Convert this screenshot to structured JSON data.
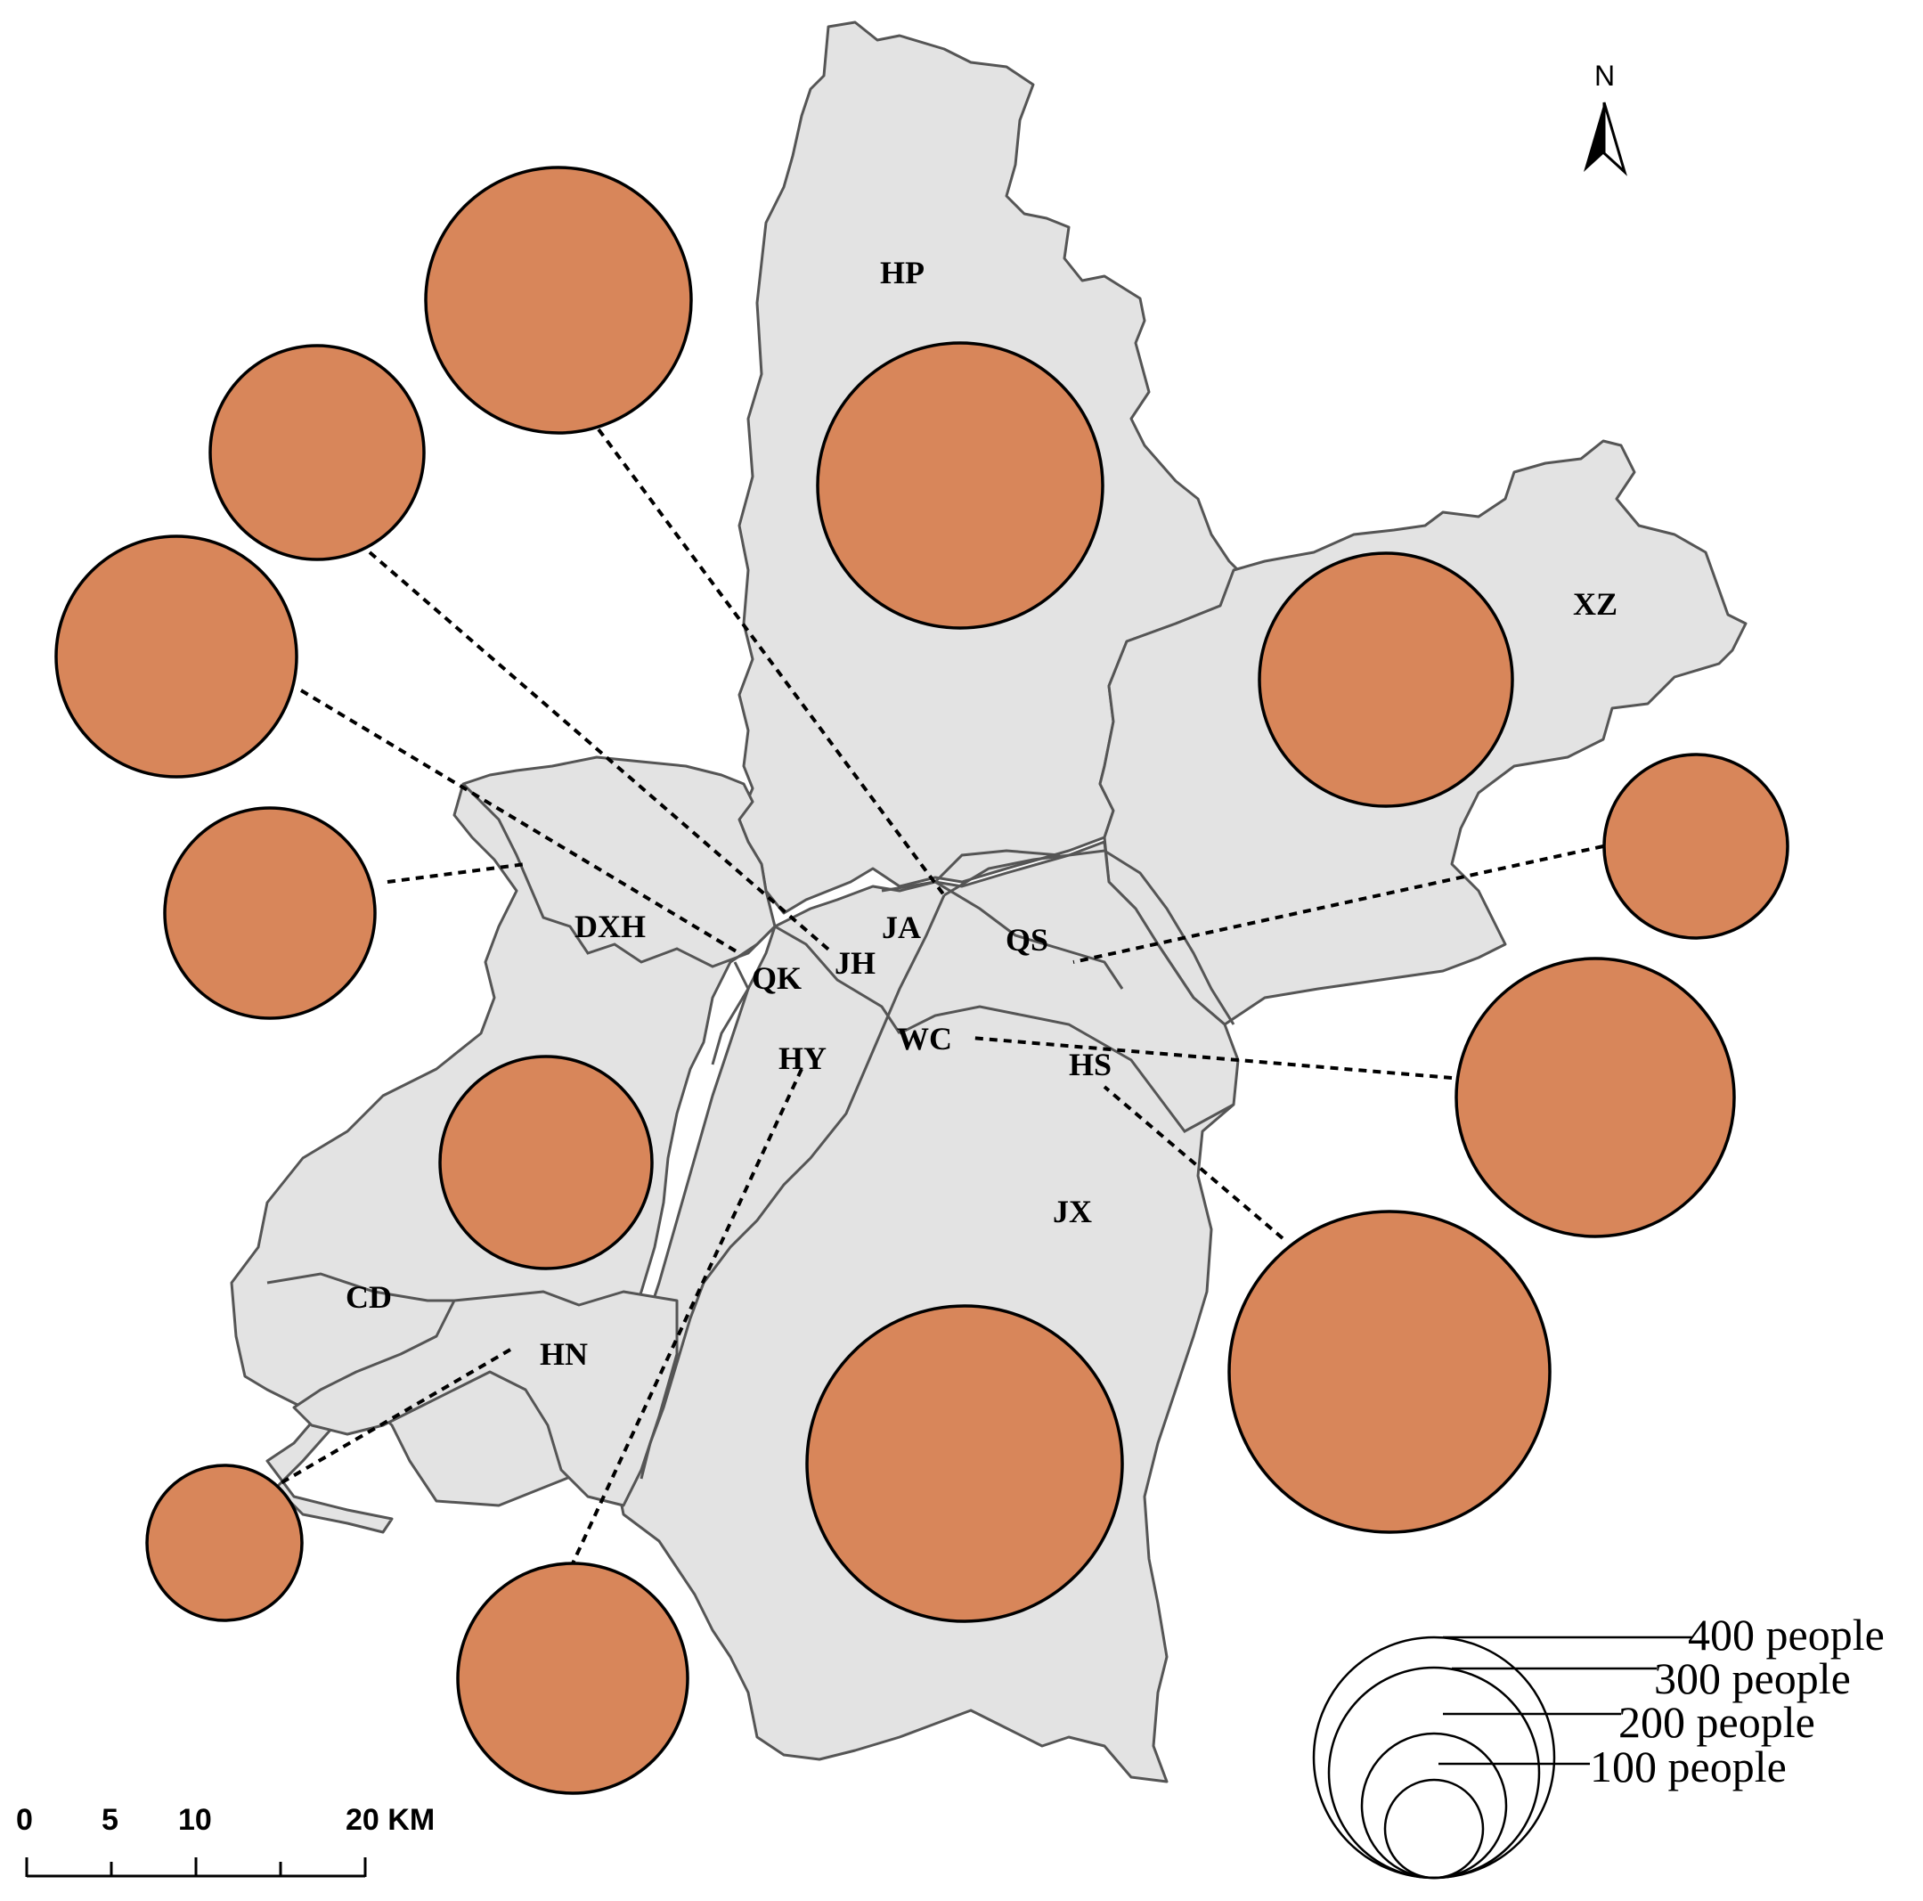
{
  "districts": [
    {
      "code": "HP"
    },
    {
      "code": "XZ"
    },
    {
      "code": "JA"
    },
    {
      "code": "QS"
    },
    {
      "code": "DXH"
    },
    {
      "code": "JH"
    },
    {
      "code": "QK"
    },
    {
      "code": "WC"
    },
    {
      "code": "HY"
    },
    {
      "code": "HS"
    },
    {
      "code": "JX"
    },
    {
      "code": "CD"
    },
    {
      "code": "HN"
    }
  ],
  "north_arrow": {
    "label": "N"
  },
  "scale_bar": {
    "ticks": [
      "0",
      "5",
      "10",
      "20 KM"
    ]
  },
  "legend": {
    "items": [
      {
        "label": "400 people",
        "value": 400
      },
      {
        "label": "300 people",
        "value": 300
      },
      {
        "label": "200 people",
        "value": 200
      },
      {
        "label": "100 people",
        "value": 100
      }
    ]
  },
  "colors": {
    "bubble": "#d8865a",
    "land": "#e3e3e3",
    "border": "#555555"
  }
}
